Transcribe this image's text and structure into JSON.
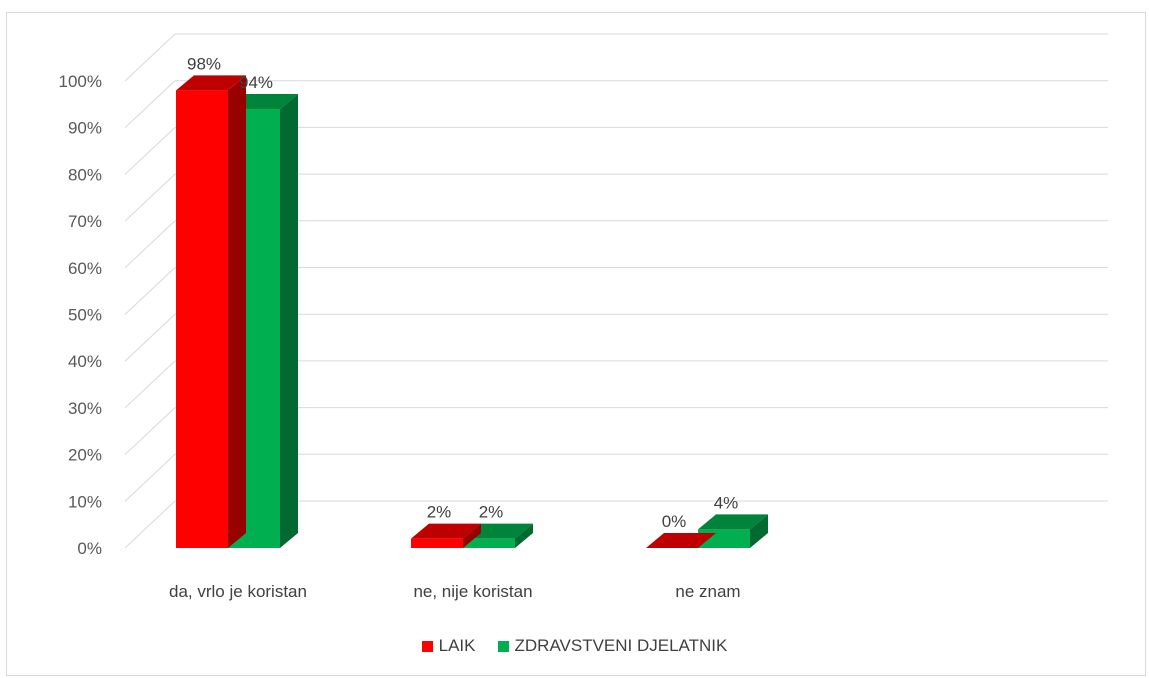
{
  "chart_data": {
    "type": "bar",
    "categories": [
      "da, vrlo je koristan",
      "ne, nije koristan",
      "ne znam"
    ],
    "series": [
      {
        "name": "LAIK",
        "values": [
          98,
          2,
          0
        ],
        "color": "#ff0000",
        "labels": [
          "98%",
          "2%",
          "0%"
        ]
      },
      {
        "name": "ZDRAVSTVENI DJELATNIK",
        "values": [
          94,
          2,
          4
        ],
        "color": "#00b050",
        "labels": [
          "94%",
          "2%",
          "4%"
        ]
      }
    ],
    "ylim": [
      0,
      100
    ],
    "yticks": [
      0,
      10,
      20,
      30,
      40,
      50,
      60,
      70,
      80,
      90,
      100
    ],
    "ytick_labels": [
      "0%",
      "10%",
      "20%",
      "30%",
      "40%",
      "50%",
      "60%",
      "70%",
      "80%",
      "90%",
      "100%"
    ],
    "grid": true,
    "legend_position": "bottom",
    "style": "3d-clustered-column"
  }
}
